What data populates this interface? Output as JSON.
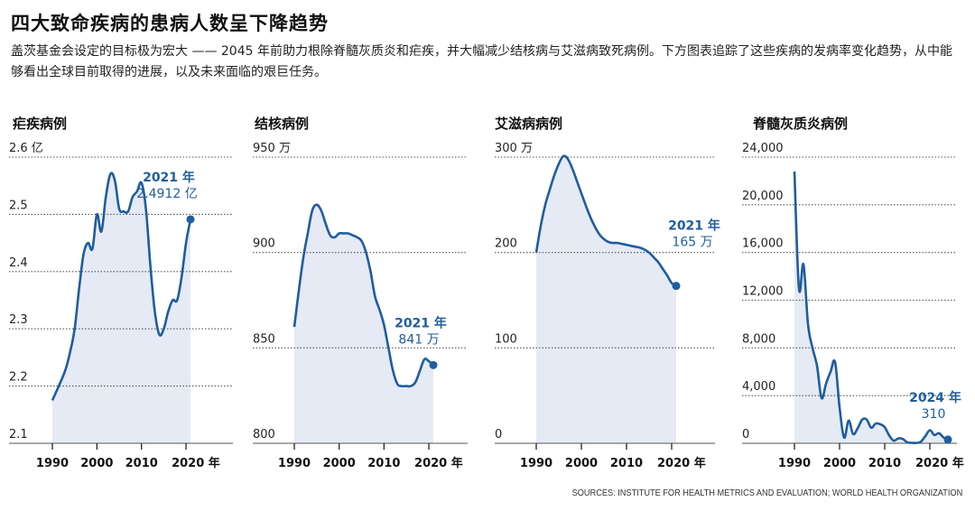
{
  "title": "四大致命疾病的患病人数呈下降趋势",
  "subtitle": "盖茨基金会设定的目标极为宏大 —— 2045 年前助力根除脊髓灰质炎和疟疾，并大幅减少结核病与艾滋病致死病例。下方图表追踪了这些疾病的发病率变化趋势，从中能够看出全球目前取得的进展，以及未来面临的艰巨任务。",
  "source": "SOURCES: INSTITUTE FOR HEALTH METRICS AND EVALUATION; WORLD HEALTH ORGANIZATION",
  "colors": {
    "line": "#1f5d9e",
    "fill": "#e5eaf5",
    "grid": "#555555",
    "callout": "#1f5d9e"
  },
  "chart_data": [
    {
      "type": "area",
      "title": "疟疾病例",
      "ylim": [
        2.1,
        2.6
      ],
      "y_ticks": [
        2.1,
        2.2,
        2.3,
        2.4,
        2.5,
        2.6
      ],
      "y_tick_labels": [
        "2.1",
        "2.2",
        "2.3",
        "2.4",
        "2.5",
        "2.6 亿"
      ],
      "xlim": [
        1990,
        2021
      ],
      "x_ticks": [
        1990,
        2000,
        2010,
        2020
      ],
      "x_tick_labels": [
        "1990",
        "2000",
        "2010",
        "2020 年"
      ],
      "callout": {
        "year": "2021 年",
        "value": "2.4912 亿"
      },
      "x": [
        1990,
        1992,
        1993,
        1994,
        1995,
        1996,
        1997,
        1998,
        1999,
        2000,
        2001,
        2002,
        2003,
        2004,
        2005,
        2006,
        2007,
        2008,
        2009,
        2010,
        2011,
        2012,
        2013,
        2014,
        2015,
        2016,
        2017,
        2018,
        2019,
        2020,
        2021
      ],
      "values": [
        2.175,
        2.21,
        2.23,
        2.26,
        2.3,
        2.37,
        2.43,
        2.45,
        2.44,
        2.5,
        2.47,
        2.53,
        2.57,
        2.56,
        2.51,
        2.505,
        2.505,
        2.53,
        2.54,
        2.555,
        2.51,
        2.41,
        2.33,
        2.29,
        2.3,
        2.33,
        2.35,
        2.35,
        2.39,
        2.45,
        2.4912
      ]
    },
    {
      "type": "area",
      "title": "结核病例",
      "ylim": [
        800,
        950
      ],
      "y_ticks": [
        800,
        850,
        900,
        950
      ],
      "y_tick_labels": [
        "800",
        "850",
        "900",
        "950 万"
      ],
      "xlim": [
        1990,
        2021
      ],
      "x_ticks": [
        1990,
        2000,
        2010,
        2020
      ],
      "x_tick_labels": [
        "1990",
        "2000",
        "2010",
        "2020 年"
      ],
      "callout": {
        "year": "2021 年",
        "value": "841 万"
      },
      "x": [
        1990,
        1991,
        1992,
        1993,
        1994,
        1995,
        1996,
        1997,
        1998,
        1999,
        2000,
        2001,
        2002,
        2003,
        2004,
        2005,
        2006,
        2007,
        2008,
        2009,
        2010,
        2011,
        2012,
        2013,
        2014,
        2015,
        2016,
        2017,
        2018,
        2019,
        2020,
        2021
      ],
      "values": [
        861,
        880,
        897,
        910,
        922,
        925,
        922,
        915,
        909,
        908,
        910,
        910,
        910,
        909,
        908,
        906,
        900,
        890,
        877,
        870,
        862,
        850,
        838,
        831,
        830,
        830,
        830,
        832,
        838,
        844,
        843,
        841
      ]
    },
    {
      "type": "area",
      "title": "艾滋病病例",
      "ylim": [
        0,
        300
      ],
      "y_ticks": [
        0,
        100,
        200,
        300
      ],
      "y_tick_labels": [
        "0",
        "100",
        "200",
        "300 万"
      ],
      "xlim": [
        1990,
        2021
      ],
      "x_ticks": [
        1990,
        2000,
        2010,
        2020
      ],
      "x_tick_labels": [
        "1990",
        "2000",
        "2010",
        "2020 年"
      ],
      "callout": {
        "year": "2021 年",
        "value": "165 万"
      },
      "x": [
        1990,
        1991,
        1992,
        1993,
        1994,
        1995,
        1996,
        1997,
        1998,
        1999,
        2000,
        2001,
        2002,
        2003,
        2004,
        2005,
        2006,
        2007,
        2008,
        2009,
        2010,
        2011,
        2012,
        2013,
        2014,
        2015,
        2016,
        2017,
        2018,
        2019,
        2020,
        2021
      ],
      "values": [
        200,
        228,
        250,
        266,
        281,
        293,
        301,
        298,
        288,
        275,
        262,
        249,
        237,
        227,
        219,
        214,
        211,
        210,
        210,
        209,
        208,
        207,
        206,
        205,
        203,
        200,
        195,
        190,
        183,
        176,
        168,
        165
      ]
    },
    {
      "type": "area",
      "title": "脊髓灰质炎病例",
      "ylim": [
        0,
        24000
      ],
      "y_ticks": [
        0,
        4000,
        8000,
        12000,
        16000,
        20000,
        24000
      ],
      "y_tick_labels": [
        "0",
        "4,000",
        "8,000",
        "12,000",
        "16,000",
        "20,000",
        "24,000"
      ],
      "xlim": [
        1990,
        2024
      ],
      "x_ticks": [
        1990,
        2000,
        2010,
        2020
      ],
      "x_tick_labels": [
        "1990",
        "2000",
        "2010",
        "2020 年"
      ],
      "callout": {
        "year": "2024 年",
        "value": "310"
      },
      "x": [
        1990,
        1991,
        1992,
        1993,
        1994,
        1995,
        1996,
        1997,
        1998,
        1999,
        2000,
        2001,
        2002,
        2003,
        2004,
        2005,
        2006,
        2007,
        2008,
        2009,
        2010,
        2011,
        2012,
        2013,
        2014,
        2015,
        2016,
        2017,
        2018,
        2019,
        2020,
        2021,
        2022,
        2023,
        2024
      ],
      "values": [
        22800,
        13000,
        15000,
        10000,
        8000,
        6500,
        3800,
        5000,
        6000,
        6800,
        3000,
        480,
        1900,
        780,
        1250,
        1980,
        1990,
        1310,
        1650,
        1600,
        1350,
        650,
        220,
        410,
        360,
        80,
        40,
        30,
        130,
        600,
        1100,
        700,
        850,
        500,
        310
      ]
    }
  ]
}
